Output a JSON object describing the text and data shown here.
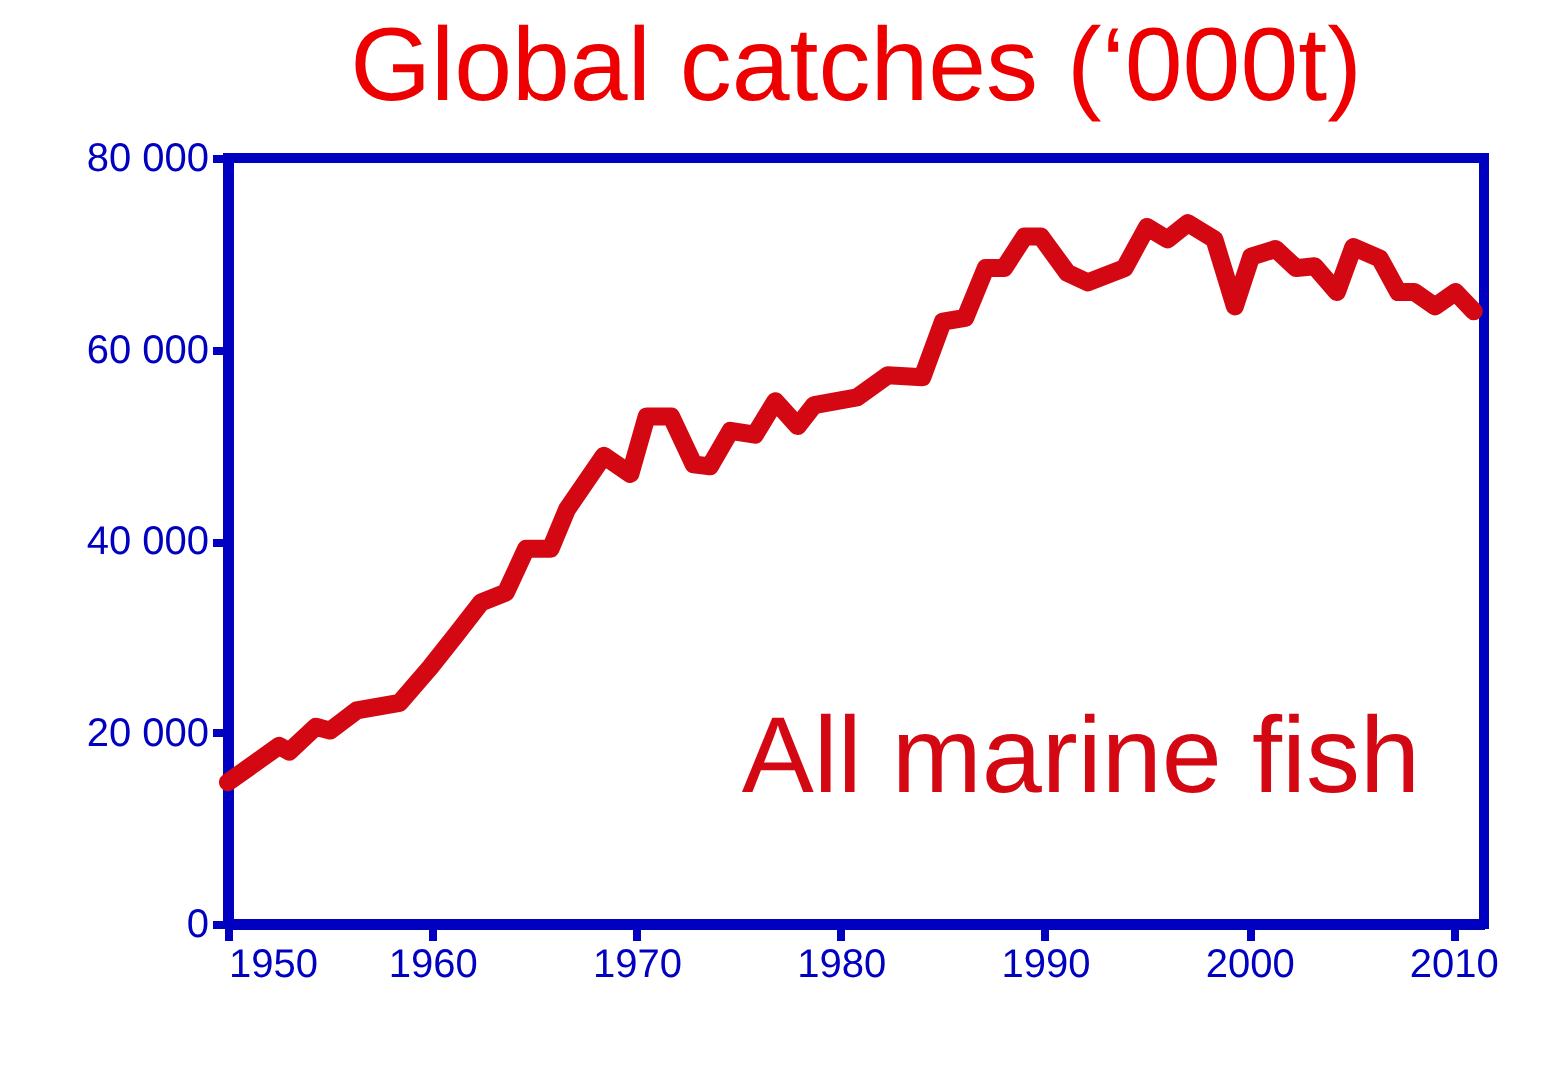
{
  "chart_data": {
    "type": "line",
    "title": "Global catches (‘000t)",
    "x": [
      1950,
      1952.5,
      1953,
      1954.3,
      1955,
      1956.3,
      1958.4,
      1959.9,
      1961.2,
      1962.4,
      1963.6,
      1964.6,
      1965.8,
      1966.6,
      1968.4,
      1969.7,
      1970.5,
      1971.7,
      1972.8,
      1973.6,
      1974.6,
      1975.8,
      1976.8,
      1977.9,
      1978.7,
      1980.8,
      1982.3,
      1984,
      1985,
      1986.1,
      1987.1,
      1988,
      1989,
      1989.8,
      1991.1,
      1992.1,
      1993.9,
      1995,
      1996,
      1997,
      1998.3,
      1999.3,
      2000.1,
      2001.3,
      2002.3,
      2003.2,
      2004.3,
      2005.1,
      2006.4,
      2007.3,
      2008.1,
      2009.1,
      2010.1,
      2011
    ],
    "series": [
      {
        "color": "#d40812",
        "values": [
          14800,
          18600,
          18000,
          20600,
          20200,
          22300,
          23100,
          26800,
          30300,
          33600,
          34600,
          39200,
          39200,
          43300,
          48900,
          47000,
          53000,
          53000,
          48000,
          47800,
          51500,
          51100,
          54600,
          52000,
          54200,
          55000,
          57300,
          57100,
          62900,
          63300,
          68500,
          68500,
          71800,
          71800,
          68000,
          67000,
          68500,
          72800,
          71500,
          73200,
          71500,
          64500,
          69700,
          70500,
          68500,
          68700,
          66000,
          70700,
          69500,
          66000,
          66000,
          64500,
          66000,
          64000
        ]
      }
    ],
    "xlim": [
      1950,
      2011.5
    ],
    "xticks": [
      1950,
      1960,
      1970,
      1980,
      1990,
      2000,
      2010
    ],
    "ylim": [
      0,
      80000
    ],
    "yticks": [
      0,
      {
        "value": 20000,
        "label": "20 000"
      },
      {
        "value": 40000,
        "label": "40 000"
      },
      {
        "value": 60000,
        "label": "60 000"
      },
      {
        "value": 80000,
        "label": "80 000"
      }
    ],
    "annotations": [
      "All marine fish"
    ],
    "grid": false,
    "line_style": "solid"
  }
}
